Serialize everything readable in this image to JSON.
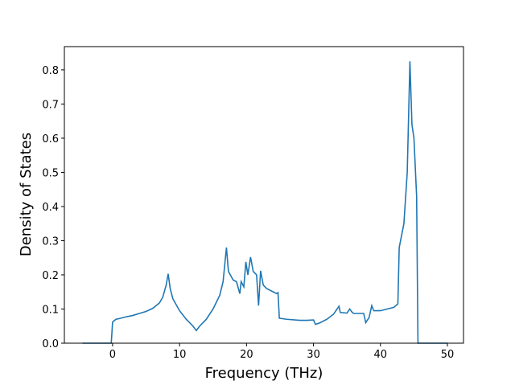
{
  "chart_data": {
    "type": "line",
    "xlabel": "Frequency (THz)",
    "ylabel": "Density of States",
    "xlim": [
      -7.2,
      52.4
    ],
    "ylim": [
      0,
      0.868
    ],
    "xticks": [
      0,
      10,
      20,
      30,
      40,
      50
    ],
    "yticks": [
      {
        "value": 0,
        "label": "0.0"
      },
      0.1,
      0.2,
      0.3,
      0.4,
      0.5,
      0.6,
      0.7,
      0.8
    ],
    "grid": false,
    "series": [
      {
        "color": "#1f77b4",
        "x": [
          -4.5,
          -0.2,
          0,
          0.5,
          1,
          2,
          3,
          4,
          5,
          6,
          7,
          7.5,
          8,
          8.3,
          8.6,
          9,
          10,
          11,
          12,
          12.5,
          13,
          14,
          15,
          16,
          16.5,
          17,
          17.3,
          18,
          18.5,
          19,
          19.2,
          19.6,
          19.9,
          20.2,
          20.6,
          21,
          21.5,
          21.8,
          22.1,
          22.5,
          23,
          24,
          24.5,
          24.7,
          24.9,
          26,
          28,
          29,
          30,
          30.3,
          31,
          32,
          33,
          33.8,
          34,
          35,
          35.4,
          35.8,
          36,
          37.5,
          37.8,
          38.3,
          38.7,
          39,
          40,
          41,
          42,
          42.6,
          42.8,
          43.5,
          44,
          44.4,
          44.7,
          45,
          45.4,
          45.6,
          50
        ],
        "values": [
          0,
          0,
          0.062,
          0.07,
          0.072,
          0.077,
          0.081,
          0.087,
          0.093,
          0.102,
          0.118,
          0.135,
          0.17,
          0.203,
          0.16,
          0.13,
          0.095,
          0.07,
          0.05,
          0.037,
          0.05,
          0.07,
          0.1,
          0.14,
          0.18,
          0.28,
          0.21,
          0.185,
          0.18,
          0.145,
          0.18,
          0.165,
          0.238,
          0.2,
          0.252,
          0.21,
          0.2,
          0.11,
          0.212,
          0.17,
          0.16,
          0.15,
          0.145,
          0.148,
          0.073,
          0.07,
          0.067,
          0.067,
          0.068,
          0.055,
          0.06,
          0.07,
          0.085,
          0.108,
          0.09,
          0.088,
          0.1,
          0.09,
          0.087,
          0.087,
          0.06,
          0.075,
          0.11,
          0.095,
          0.095,
          0.1,
          0.105,
          0.115,
          0.28,
          0.35,
          0.5,
          0.825,
          0.64,
          0.6,
          0.43,
          0,
          0
        ]
      }
    ]
  }
}
